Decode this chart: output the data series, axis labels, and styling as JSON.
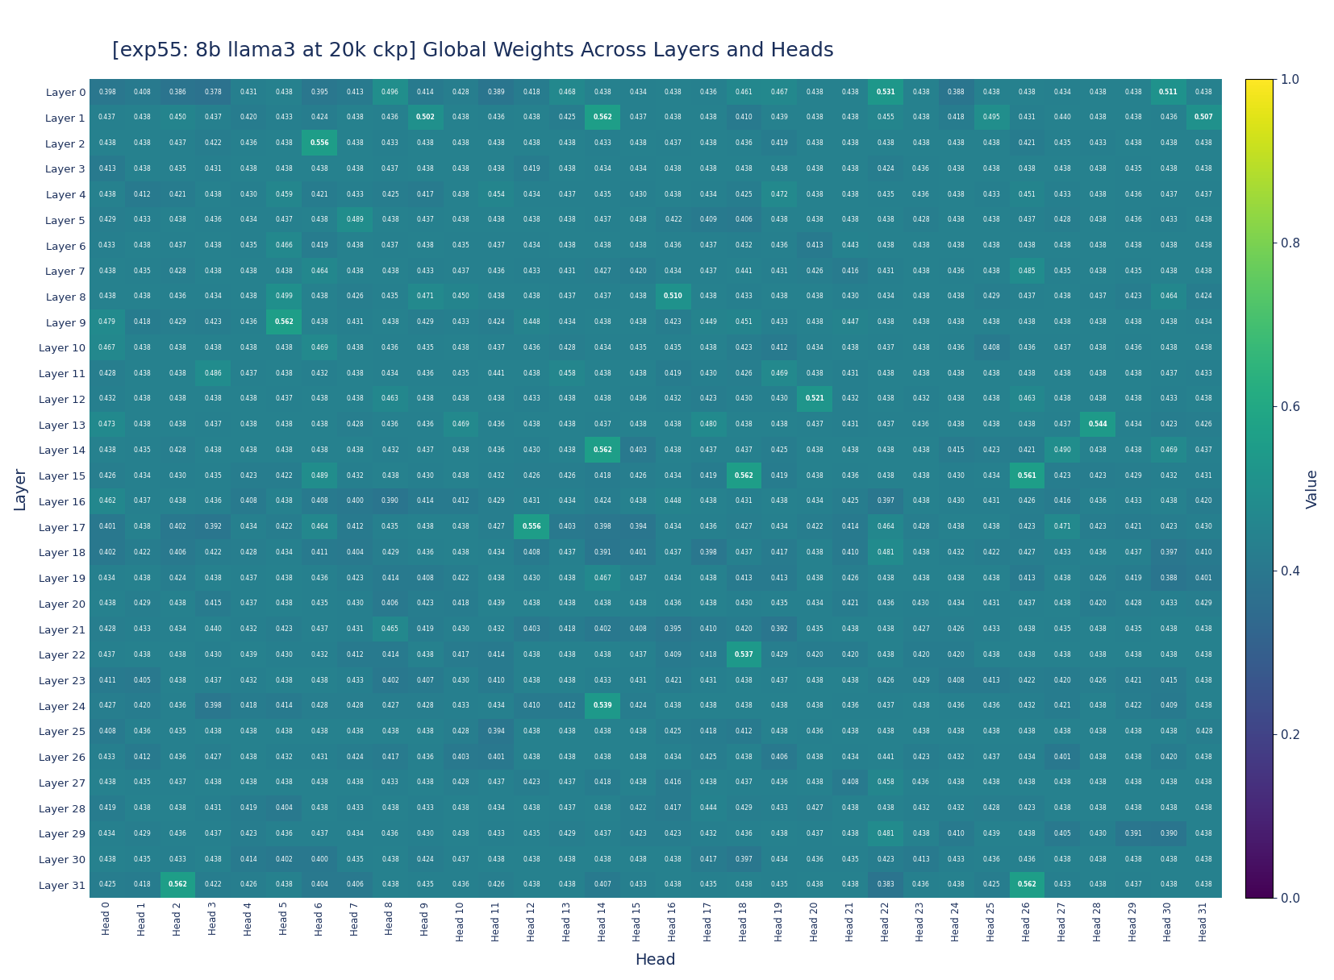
{
  "title": "[exp55: 8b llama3 at 20k ckp] Global Weights Across Layers and Heads",
  "xlabel": "Head",
  "ylabel": "Layer",
  "colorbar_label": "Value",
  "vmin": 0,
  "vmax": 1,
  "figsize": [
    16.54,
    12.16
  ],
  "title_color": "#1a2e5a",
  "title_fontsize": 18,
  "data": [
    [
      0.398,
      0.408,
      0.386,
      0.378,
      0.431,
      0.438,
      0.395,
      0.413,
      0.496,
      0.414,
      0.428,
      0.389,
      0.418,
      0.468,
      0.438,
      0.434,
      0.438,
      0.436,
      0.461,
      0.467,
      0.438,
      0.438,
      0.531,
      0.438,
      0.388,
      0.438,
      0.438,
      0.434,
      0.438,
      0.438,
      0.511,
      0.438
    ],
    [
      0.437,
      0.438,
      0.45,
      0.437,
      0.42,
      0.433,
      0.424,
      0.438,
      0.436,
      0.502,
      0.438,
      0.436,
      0.438,
      0.425,
      0.562,
      0.437,
      0.438,
      0.438,
      0.41,
      0.439,
      0.438,
      0.438,
      0.455,
      0.438,
      0.418,
      0.495,
      0.431,
      0.44,
      0.438,
      0.438,
      0.436,
      0.507
    ],
    [
      0.438,
      0.438,
      0.437,
      0.422,
      0.436,
      0.438,
      0.556,
      0.438,
      0.433,
      0.438,
      0.438,
      0.438,
      0.438,
      0.438,
      0.433,
      0.438,
      0.437,
      0.438,
      0.436,
      0.419,
      0.438,
      0.438,
      0.438,
      0.438,
      0.438,
      0.438,
      0.421,
      0.435,
      0.433,
      0.438,
      0.438,
      0.438
    ],
    [
      0.413,
      0.438,
      0.435,
      0.431,
      0.438,
      0.438,
      0.438,
      0.438,
      0.437,
      0.438,
      0.438,
      0.438,
      0.419,
      0.438,
      0.434,
      0.434,
      0.438,
      0.438,
      0.438,
      0.438,
      0.438,
      0.438,
      0.424,
      0.436,
      0.438,
      0.438,
      0.438,
      0.438,
      0.438,
      0.435,
      0.438,
      0.438
    ],
    [
      0.438,
      0.412,
      0.421,
      0.438,
      0.43,
      0.459,
      0.421,
      0.433,
      0.425,
      0.417,
      0.438,
      0.454,
      0.434,
      0.437,
      0.435,
      0.43,
      0.438,
      0.434,
      0.425,
      0.472,
      0.438,
      0.438,
      0.435,
      0.436,
      0.438,
      0.433,
      0.451,
      0.433,
      0.438,
      0.436,
      0.437,
      0.437
    ],
    [
      0.429,
      0.433,
      0.438,
      0.436,
      0.434,
      0.437,
      0.438,
      0.489,
      0.438,
      0.437,
      0.438,
      0.438,
      0.438,
      0.438,
      0.437,
      0.438,
      0.422,
      0.409,
      0.406,
      0.438,
      0.438,
      0.438,
      0.438,
      0.428,
      0.438,
      0.438,
      0.437,
      0.428,
      0.438,
      0.436,
      0.433,
      0.438
    ],
    [
      0.433,
      0.438,
      0.437,
      0.438,
      0.435,
      0.466,
      0.419,
      0.438,
      0.437,
      0.438,
      0.435,
      0.437,
      0.434,
      0.438,
      0.438,
      0.438,
      0.436,
      0.437,
      0.432,
      0.436,
      0.413,
      0.443,
      0.438,
      0.438,
      0.438,
      0.438,
      0.438,
      0.438,
      0.438,
      0.438,
      0.438,
      0.438
    ],
    [
      0.438,
      0.435,
      0.428,
      0.438,
      0.438,
      0.438,
      0.464,
      0.438,
      0.438,
      0.433,
      0.437,
      0.436,
      0.433,
      0.431,
      0.427,
      0.42,
      0.434,
      0.437,
      0.441,
      0.431,
      0.426,
      0.416,
      0.431,
      0.438,
      0.436,
      0.438,
      0.485,
      0.435,
      0.438,
      0.435,
      0.438,
      0.438
    ],
    [
      0.438,
      0.438,
      0.436,
      0.434,
      0.438,
      0.499,
      0.438,
      0.426,
      0.435,
      0.471,
      0.45,
      0.438,
      0.438,
      0.437,
      0.437,
      0.438,
      0.51,
      0.438,
      0.433,
      0.438,
      0.438,
      0.43,
      0.434,
      0.438,
      0.438,
      0.429,
      0.437,
      0.438,
      0.437,
      0.423,
      0.464,
      0.424
    ],
    [
      0.479,
      0.418,
      0.429,
      0.423,
      0.436,
      0.562,
      0.438,
      0.431,
      0.438,
      0.429,
      0.433,
      0.424,
      0.448,
      0.434,
      0.438,
      0.438,
      0.423,
      0.449,
      0.451,
      0.433,
      0.438,
      0.447,
      0.438,
      0.438,
      0.438,
      0.438,
      0.438,
      0.438,
      0.438,
      0.438,
      0.438,
      0.434
    ],
    [
      0.467,
      0.438,
      0.438,
      0.438,
      0.438,
      0.438,
      0.469,
      0.438,
      0.436,
      0.435,
      0.438,
      0.437,
      0.436,
      0.428,
      0.434,
      0.435,
      0.435,
      0.438,
      0.423,
      0.412,
      0.434,
      0.438,
      0.437,
      0.438,
      0.436,
      0.408,
      0.436,
      0.437,
      0.438,
      0.436,
      0.438,
      0.438
    ],
    [
      0.428,
      0.438,
      0.438,
      0.486,
      0.437,
      0.438,
      0.432,
      0.438,
      0.434,
      0.436,
      0.435,
      0.441,
      0.438,
      0.458,
      0.438,
      0.438,
      0.419,
      0.43,
      0.426,
      0.469,
      0.438,
      0.431,
      0.438,
      0.438,
      0.438,
      0.438,
      0.438,
      0.438,
      0.438,
      0.438,
      0.437,
      0.433
    ],
    [
      0.432,
      0.438,
      0.438,
      0.438,
      0.438,
      0.437,
      0.438,
      0.438,
      0.463,
      0.438,
      0.438,
      0.438,
      0.433,
      0.438,
      0.438,
      0.436,
      0.432,
      0.423,
      0.43,
      0.43,
      0.521,
      0.432,
      0.438,
      0.432,
      0.438,
      0.438,
      0.463,
      0.438,
      0.438,
      0.438,
      0.433,
      0.438
    ],
    [
      0.473,
      0.438,
      0.438,
      0.437,
      0.438,
      0.438,
      0.438,
      0.428,
      0.436,
      0.436,
      0.469,
      0.436,
      0.438,
      0.438,
      0.437,
      0.438,
      0.438,
      0.48,
      0.438,
      0.438,
      0.437,
      0.431,
      0.437,
      0.436,
      0.438,
      0.438,
      0.438,
      0.437,
      0.544,
      0.434,
      0.423,
      0.426
    ],
    [
      0.438,
      0.435,
      0.428,
      0.438,
      0.438,
      0.438,
      0.438,
      0.438,
      0.432,
      0.437,
      0.438,
      0.436,
      0.43,
      0.438,
      0.562,
      0.403,
      0.438,
      0.437,
      0.437,
      0.425,
      0.438,
      0.438,
      0.438,
      0.438,
      0.415,
      0.423,
      0.421,
      0.49,
      0.438,
      0.438,
      0.469,
      0.437
    ],
    [
      0.426,
      0.434,
      0.43,
      0.435,
      0.423,
      0.422,
      0.489,
      0.432,
      0.438,
      0.43,
      0.438,
      0.432,
      0.426,
      0.426,
      0.418,
      0.426,
      0.434,
      0.419,
      0.562,
      0.419,
      0.438,
      0.436,
      0.438,
      0.438,
      0.43,
      0.434,
      0.561,
      0.423,
      0.423,
      0.429,
      0.432,
      0.431
    ],
    [
      0.462,
      0.437,
      0.438,
      0.436,
      0.408,
      0.438,
      0.408,
      0.4,
      0.39,
      0.414,
      0.412,
      0.429,
      0.431,
      0.434,
      0.424,
      0.438,
      0.448,
      0.438,
      0.431,
      0.438,
      0.434,
      0.425,
      0.397,
      0.438,
      0.43,
      0.431,
      0.426,
      0.416,
      0.436,
      0.433,
      0.438,
      0.42
    ],
    [
      0.401,
      0.438,
      0.402,
      0.392,
      0.434,
      0.422,
      0.464,
      0.412,
      0.435,
      0.438,
      0.438,
      0.427,
      0.556,
      0.403,
      0.398,
      0.394,
      0.434,
      0.436,
      0.427,
      0.434,
      0.422,
      0.414,
      0.464,
      0.428,
      0.438,
      0.438,
      0.423,
      0.471,
      0.423,
      0.421,
      0.423,
      0.43
    ],
    [
      0.402,
      0.422,
      0.406,
      0.422,
      0.428,
      0.434,
      0.411,
      0.404,
      0.429,
      0.436,
      0.438,
      0.434,
      0.408,
      0.437,
      0.391,
      0.401,
      0.437,
      0.398,
      0.437,
      0.417,
      0.438,
      0.41,
      0.481,
      0.438,
      0.432,
      0.422,
      0.427,
      0.433,
      0.436,
      0.437,
      0.397,
      0.41
    ],
    [
      0.434,
      0.438,
      0.424,
      0.438,
      0.437,
      0.438,
      0.436,
      0.423,
      0.414,
      0.408,
      0.422,
      0.438,
      0.43,
      0.438,
      0.467,
      0.437,
      0.434,
      0.438,
      0.413,
      0.413,
      0.438,
      0.426,
      0.438,
      0.438,
      0.438,
      0.438,
      0.413,
      0.438,
      0.426,
      0.419,
      0.388,
      0.401
    ],
    [
      0.438,
      0.429,
      0.438,
      0.415,
      0.437,
      0.438,
      0.435,
      0.43,
      0.406,
      0.423,
      0.418,
      0.439,
      0.438,
      0.438,
      0.438,
      0.438,
      0.436,
      0.438,
      0.43,
      0.435,
      0.434,
      0.421,
      0.436,
      0.43,
      0.434,
      0.431,
      0.437,
      0.438,
      0.42,
      0.428,
      0.433,
      0.429
    ],
    [
      0.428,
      0.433,
      0.434,
      0.44,
      0.432,
      0.423,
      0.437,
      0.431,
      0.465,
      0.419,
      0.43,
      0.432,
      0.403,
      0.418,
      0.402,
      0.408,
      0.395,
      0.41,
      0.42,
      0.392,
      0.435,
      0.438,
      0.438,
      0.427,
      0.426,
      0.433,
      0.438,
      0.435,
      0.438,
      0.435,
      0.438,
      0.438
    ],
    [
      0.437,
      0.438,
      0.438,
      0.43,
      0.439,
      0.43,
      0.432,
      0.412,
      0.414,
      0.438,
      0.417,
      0.414,
      0.438,
      0.438,
      0.438,
      0.437,
      0.409,
      0.418,
      0.537,
      0.429,
      0.42,
      0.42,
      0.438,
      0.42,
      0.42,
      0.438,
      0.438,
      0.438,
      0.438,
      0.438,
      0.438,
      0.438
    ],
    [
      0.411,
      0.405,
      0.438,
      0.437,
      0.432,
      0.438,
      0.438,
      0.433,
      0.402,
      0.407,
      0.43,
      0.41,
      0.438,
      0.438,
      0.433,
      0.431,
      0.421,
      0.431,
      0.438,
      0.437,
      0.438,
      0.438,
      0.426,
      0.429,
      0.408,
      0.413,
      0.422,
      0.42,
      0.426,
      0.421,
      0.415,
      0.438
    ],
    [
      0.427,
      0.42,
      0.436,
      0.398,
      0.418,
      0.414,
      0.428,
      0.428,
      0.427,
      0.428,
      0.433,
      0.434,
      0.41,
      0.412,
      0.539,
      0.424,
      0.438,
      0.438,
      0.438,
      0.438,
      0.438,
      0.436,
      0.437,
      0.438,
      0.436,
      0.436,
      0.432,
      0.421,
      0.438,
      0.422,
      0.409,
      0.438
    ],
    [
      0.408,
      0.436,
      0.435,
      0.438,
      0.438,
      0.438,
      0.438,
      0.438,
      0.438,
      0.438,
      0.428,
      0.394,
      0.438,
      0.438,
      0.438,
      0.438,
      0.425,
      0.418,
      0.412,
      0.438,
      0.436,
      0.438,
      0.438,
      0.438,
      0.438,
      0.438,
      0.438,
      0.438,
      0.438,
      0.438,
      0.438,
      0.428
    ],
    [
      0.433,
      0.412,
      0.436,
      0.427,
      0.438,
      0.432,
      0.431,
      0.424,
      0.417,
      0.436,
      0.403,
      0.401,
      0.438,
      0.438,
      0.438,
      0.438,
      0.434,
      0.425,
      0.438,
      0.406,
      0.438,
      0.434,
      0.441,
      0.423,
      0.432,
      0.437,
      0.434,
      0.401,
      0.438,
      0.438,
      0.42,
      0.438
    ],
    [
      0.438,
      0.435,
      0.437,
      0.438,
      0.438,
      0.438,
      0.438,
      0.438,
      0.433,
      0.438,
      0.428,
      0.437,
      0.423,
      0.437,
      0.418,
      0.438,
      0.416,
      0.438,
      0.437,
      0.436,
      0.438,
      0.408,
      0.458,
      0.436,
      0.438,
      0.438,
      0.438,
      0.438,
      0.438,
      0.438,
      0.438,
      0.438
    ],
    [
      0.419,
      0.438,
      0.438,
      0.431,
      0.419,
      0.404,
      0.438,
      0.433,
      0.438,
      0.433,
      0.438,
      0.434,
      0.438,
      0.437,
      0.438,
      0.422,
      0.417,
      0.444,
      0.429,
      0.433,
      0.427,
      0.438,
      0.438,
      0.432,
      0.432,
      0.428,
      0.423,
      0.438,
      0.438,
      0.438,
      0.438,
      0.438
    ],
    [
      0.434,
      0.429,
      0.436,
      0.437,
      0.423,
      0.436,
      0.437,
      0.434,
      0.436,
      0.43,
      0.438,
      0.433,
      0.435,
      0.429,
      0.437,
      0.423,
      0.423,
      0.432,
      0.436,
      0.438,
      0.437,
      0.438,
      0.481,
      0.438,
      0.41,
      0.439,
      0.438,
      0.405,
      0.43,
      0.391,
      0.39,
      0.438
    ],
    [
      0.438,
      0.435,
      0.433,
      0.438,
      0.414,
      0.402,
      0.4,
      0.435,
      0.438,
      0.424,
      0.437,
      0.438,
      0.438,
      0.438,
      0.438,
      0.438,
      0.438,
      0.417,
      0.397,
      0.434,
      0.436,
      0.435,
      0.423,
      0.413,
      0.433,
      0.436,
      0.436,
      0.438,
      0.438,
      0.438,
      0.438,
      0.438
    ],
    [
      0.425,
      0.418,
      0.562,
      0.422,
      0.426,
      0.438,
      0.404,
      0.406,
      0.438,
      0.435,
      0.436,
      0.426,
      0.438,
      0.438,
      0.407,
      0.433,
      0.438,
      0.435,
      0.438,
      0.435,
      0.438,
      0.438,
      0.383,
      0.436,
      0.438,
      0.425,
      0.562,
      0.433,
      0.438,
      0.437,
      0.438,
      0.438
    ]
  ]
}
